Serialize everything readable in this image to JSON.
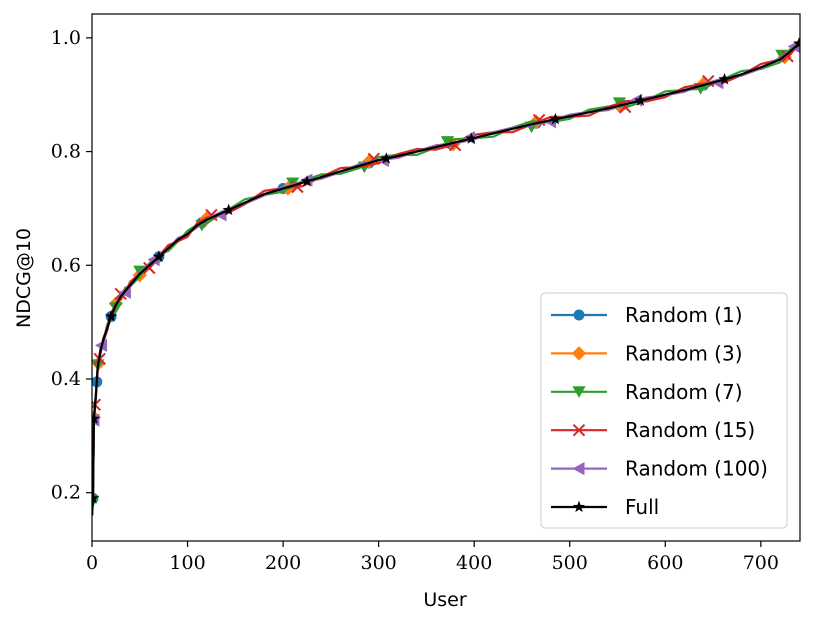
{
  "chart_data": {
    "type": "line",
    "xlabel": "User",
    "ylabel": "NDCG@10",
    "xlim": [
      0,
      741
    ],
    "ylim": [
      0.115,
      1.042
    ],
    "xticks": [
      0,
      100,
      200,
      300,
      400,
      500,
      600,
      700
    ],
    "yticks": [
      0.2,
      0.4,
      0.6,
      0.8,
      1.0
    ],
    "ytick_labels": [
      "0.2",
      "0.4",
      "0.6",
      "0.8",
      "1.0"
    ],
    "grid": false,
    "legend_position": "lower-right",
    "curve": {
      "x": [
        0,
        1,
        2,
        4,
        6,
        9,
        12,
        16,
        20,
        25,
        30,
        35,
        40,
        50,
        60,
        70,
        80,
        90,
        100,
        110,
        120,
        140,
        160,
        180,
        200,
        220,
        240,
        260,
        280,
        300,
        320,
        340,
        360,
        380,
        400,
        420,
        440,
        460,
        480,
        500,
        520,
        540,
        560,
        580,
        600,
        620,
        640,
        660,
        680,
        700,
        720,
        730,
        740
      ],
      "y": [
        0.16,
        0.19,
        0.33,
        0.37,
        0.42,
        0.45,
        0.47,
        0.49,
        0.51,
        0.53,
        0.545,
        0.555,
        0.565,
        0.585,
        0.6,
        0.615,
        0.63,
        0.645,
        0.655,
        0.67,
        0.68,
        0.695,
        0.71,
        0.725,
        0.735,
        0.745,
        0.755,
        0.765,
        0.775,
        0.785,
        0.792,
        0.8,
        0.808,
        0.816,
        0.824,
        0.832,
        0.84,
        0.848,
        0.855,
        0.862,
        0.869,
        0.876,
        0.884,
        0.892,
        0.9,
        0.908,
        0.917,
        0.926,
        0.936,
        0.948,
        0.962,
        0.975,
        0.99
      ]
    },
    "series": [
      {
        "name": "Random (1)",
        "color": "#1f77b4",
        "marker": "circle",
        "offset": 0.0,
        "marker_x": [
          1,
          5,
          20,
          70,
          115,
          200,
          290,
          375,
          465,
          555,
          640,
          725
        ]
      },
      {
        "name": "Random (3)",
        "color": "#ff7f0e",
        "marker": "diamond",
        "offset": -0.003,
        "marker_x": [
          2,
          7,
          25,
          50,
          120,
          205,
          290,
          378,
          465,
          553,
          640,
          725
        ]
      },
      {
        "name": "Random (7)",
        "color": "#2ca02c",
        "marker": "triangle-down",
        "offset": 0.006,
        "marker_x": [
          1,
          6,
          25,
          50,
          115,
          210,
          285,
          372,
          460,
          552,
          637,
          722
        ]
      },
      {
        "name": "Random (15)",
        "color": "#d62728",
        "marker": "x",
        "offset": -0.006,
        "marker_x": [
          3,
          8,
          30,
          60,
          125,
          215,
          295,
          380,
          468,
          558,
          645,
          728
        ]
      },
      {
        "name": "Random (100)",
        "color": "#9467bd",
        "marker": "triangle-left",
        "offset": 0.003,
        "marker_x": [
          2,
          10,
          35,
          65,
          135,
          225,
          305,
          395,
          480,
          570,
          655,
          735
        ]
      },
      {
        "name": "Full",
        "color": "#000000",
        "marker": "star",
        "offset": 0.0,
        "marker_x": [
          1,
          2,
          20,
          70,
          143,
          225,
          308,
          397,
          485,
          574,
          662,
          740
        ]
      }
    ]
  }
}
